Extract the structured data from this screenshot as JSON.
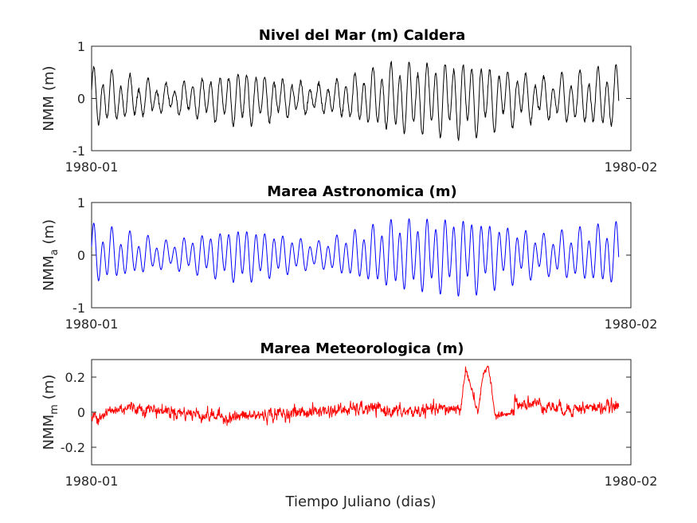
{
  "figure": {
    "xlabel": "Tiempo Juliano (dias)"
  },
  "chart_data": [
    {
      "type": "line",
      "title": "Nivel del Mar (m) Caldera",
      "ylabel": "NMM (m)",
      "ylabel_main": "NMM",
      "ylabel_sub": "",
      "ylabel_unit": "(m)",
      "xlabel": "",
      "xlim": [
        "1980-01-01",
        "1980-02-01"
      ],
      "x_tick_labels": [
        "1980-01",
        "1980-02"
      ],
      "ylim": [
        -1,
        1
      ],
      "y_ticks": [
        -1,
        0,
        1
      ],
      "y_tick_labels": [
        "-1",
        "0",
        "1"
      ],
      "grid": false,
      "series": [
        {
          "color": "#000000",
          "x_start_day": 0.0,
          "x_end_day": 30.3,
          "components": [
            {
              "period_hours": 12.42,
              "amplitude_m": [
                0.45,
                0.2,
                0.45,
                0.2,
                0.55,
                0.6,
                0.3,
                0.5
              ],
              "phase": 0.0
            },
            {
              "period_hours": 25.82,
              "amplitude_m": [
                0.18,
                0.1,
                0.1,
                0.08,
                0.15,
                0.2,
                0.15,
                0.15
              ],
              "phase": 1.2
            }
          ],
          "noise_std_m": 0.02,
          "values_min_max": [
            -0.62,
            0.82
          ]
        }
      ]
    },
    {
      "type": "line",
      "title": "Marea Astronomica (m)",
      "ylabel": "NMM_a (m)",
      "ylabel_main": "NMM",
      "ylabel_sub": "a",
      "ylabel_unit": "(m)",
      "xlabel": "",
      "xlim": [
        "1980-01-01",
        "1980-02-01"
      ],
      "x_tick_labels": [
        "1980-01",
        "1980-02"
      ],
      "ylim": [
        -1,
        1
      ],
      "y_ticks": [
        -1,
        0,
        1
      ],
      "y_tick_labels": [
        "-1",
        "0",
        "1"
      ],
      "grid": false,
      "series": [
        {
          "color": "#0000ff",
          "x_start_day": 0.0,
          "x_end_day": 30.3,
          "components": [
            {
              "period_hours": 12.42,
              "amplitude_m": [
                0.45,
                0.2,
                0.45,
                0.2,
                0.55,
                0.6,
                0.3,
                0.5
              ],
              "phase": 0.0
            },
            {
              "period_hours": 25.82,
              "amplitude_m": [
                0.18,
                0.1,
                0.1,
                0.08,
                0.15,
                0.2,
                0.15,
                0.15
              ],
              "phase": 1.2
            }
          ],
          "noise_std_m": 0.0,
          "values_min_max": [
            -0.6,
            0.8
          ]
        }
      ]
    },
    {
      "type": "line",
      "title": "Marea Meteorologica (m)",
      "ylabel": "NMM_m (m)",
      "ylabel_main": "NMM",
      "ylabel_sub": "m",
      "ylabel_unit": "(m)",
      "xlabel": "Tiempo Juliano (dias)",
      "xlim": [
        "1980-01-01",
        "1980-02-01"
      ],
      "x_tick_labels": [
        "1980-01",
        "1980-02"
      ],
      "ylim": [
        -0.3,
        0.3
      ],
      "y_ticks": [
        -0.2,
        0,
        0.2
      ],
      "y_tick_labels": [
        "-0.2",
        "0",
        "0.2"
      ],
      "grid": false,
      "series": [
        {
          "color": "#ff0000",
          "x_start_day": 0.0,
          "x_end_day": 30.3,
          "baseline_m": [
            [
              0,
              -0.03
            ],
            [
              2,
              0.03
            ],
            [
              5,
              0.0
            ],
            [
              8,
              -0.03
            ],
            [
              12,
              0.0
            ],
            [
              16,
              0.02
            ],
            [
              18,
              0.0
            ],
            [
              22,
              0.03
            ],
            [
              24,
              0.06
            ],
            [
              25.5,
              0.05
            ],
            [
              27,
              0.02
            ],
            [
              30.3,
              0.03
            ]
          ],
          "surge_event_m": [
            [
              21.2,
              0.0
            ],
            [
              21.5,
              0.25
            ],
            [
              22.2,
              0.0
            ],
            [
              22.5,
              0.2
            ],
            [
              22.8,
              0.27
            ],
            [
              23.2,
              -0.02
            ],
            [
              24.3,
              0.0
            ]
          ],
          "noise_std_m": 0.022,
          "values_min_max": [
            -0.1,
            0.27
          ]
        }
      ]
    }
  ]
}
